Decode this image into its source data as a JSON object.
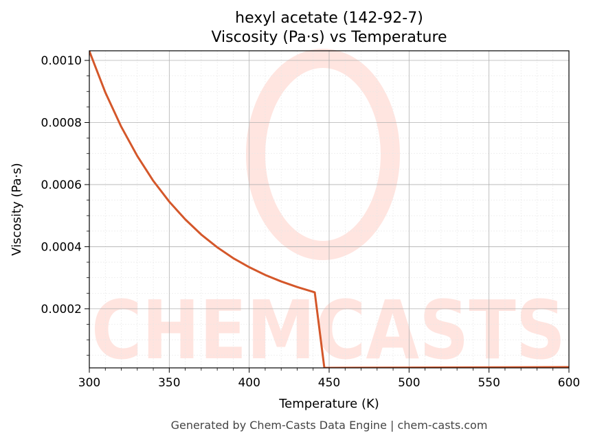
{
  "chart_data": {
    "type": "line",
    "title": "hexyl acetate (142-92-7)",
    "subtitle": "Viscosity (Pa·s) vs Temperature",
    "xlabel": "Temperature (K)",
    "ylabel": "Viscosity (Pa·s)",
    "xlim": [
      300,
      600
    ],
    "ylim": [
      9.6e-06,
      0.001031
    ],
    "x_ticks": [
      300,
      350,
      400,
      450,
      500,
      550,
      600
    ],
    "x_tick_labels": [
      "300",
      "350",
      "400",
      "450",
      "500",
      "550",
      "600"
    ],
    "y_ticks": [
      0.0002,
      0.0004,
      0.0006,
      0.0008,
      0.001
    ],
    "y_tick_labels": [
      "0.0002",
      "0.0004",
      "0.0006",
      "0.0008",
      "0.0010"
    ],
    "grid": true,
    "series": [
      {
        "color": "#d4572a",
        "x": [
          300,
          310,
          320,
          330,
          340,
          350,
          360,
          370,
          380,
          390,
          400,
          410,
          420,
          430,
          441,
          447,
          450,
          500,
          550,
          600
        ],
        "y": [
          0.00103,
          0.000897,
          0.000786,
          0.000692,
          0.000612,
          0.000545,
          0.000488,
          0.000439,
          0.000398,
          0.000363,
          0.000334,
          0.000309,
          0.000288,
          0.00027,
          0.000253,
          9.6e-06,
          9.7e-06,
          1.05e-05,
          1.13e-05,
          1.21e-05
        ]
      }
    ],
    "watermark": "CHEMCASTS"
  },
  "footer": "Generated by Chem-Casts Data Engine | chem-casts.com"
}
